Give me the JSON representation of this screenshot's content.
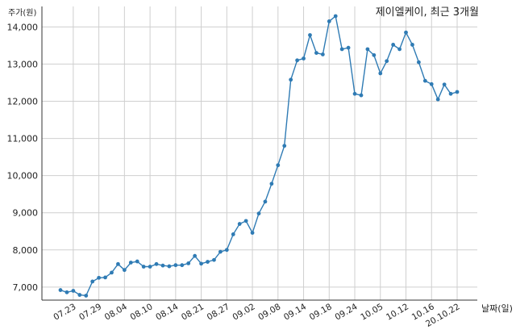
{
  "chart_data": {
    "type": "line",
    "title": "제이엘케이, 최근 3개월",
    "ylabel": "주가(원)",
    "xlabel": "날짜(일)",
    "ylim": [
      6650,
      14550
    ],
    "y_ticks": [
      7000,
      8000,
      9000,
      10000,
      11000,
      12000,
      13000,
      14000
    ],
    "y_tick_labels": [
      "7,000",
      "8,000",
      "9,000",
      "10,000",
      "11,000",
      "12,000",
      "13,000",
      "14,000"
    ],
    "x_tick_labels": [
      "07.23",
      "07.29",
      "08.04",
      "08.10",
      "08.14",
      "08.21",
      "08.27",
      "09.02",
      "09.08",
      "09.14",
      "09.18",
      "09.24",
      "10.05",
      "10.12",
      "10.16",
      "20.10.22"
    ],
    "x_tick_index": [
      2,
      6,
      10,
      14,
      18,
      22,
      26,
      30,
      34,
      38,
      42,
      46,
      50,
      54,
      58,
      62
    ],
    "grid": true,
    "series": [
      {
        "color": "#2f7bb4",
        "values": [
          6920,
          6860,
          6900,
          6790,
          6770,
          7150,
          7250,
          7260,
          7390,
          7620,
          7460,
          7660,
          7690,
          7550,
          7550,
          7620,
          7580,
          7560,
          7590,
          7590,
          7640,
          7840,
          7630,
          7680,
          7730,
          7950,
          8000,
          8420,
          8700,
          8780,
          8460,
          8980,
          9300,
          9780,
          10280,
          10800,
          12580,
          13100,
          13150,
          13780,
          13300,
          13260,
          14150,
          14290,
          13400,
          13440,
          12200,
          12160,
          13400,
          13240,
          12750,
          13080,
          13520,
          13400,
          13850,
          13520,
          13050,
          12550,
          12460,
          12050,
          12450,
          12200,
          12250
        ]
      }
    ]
  }
}
